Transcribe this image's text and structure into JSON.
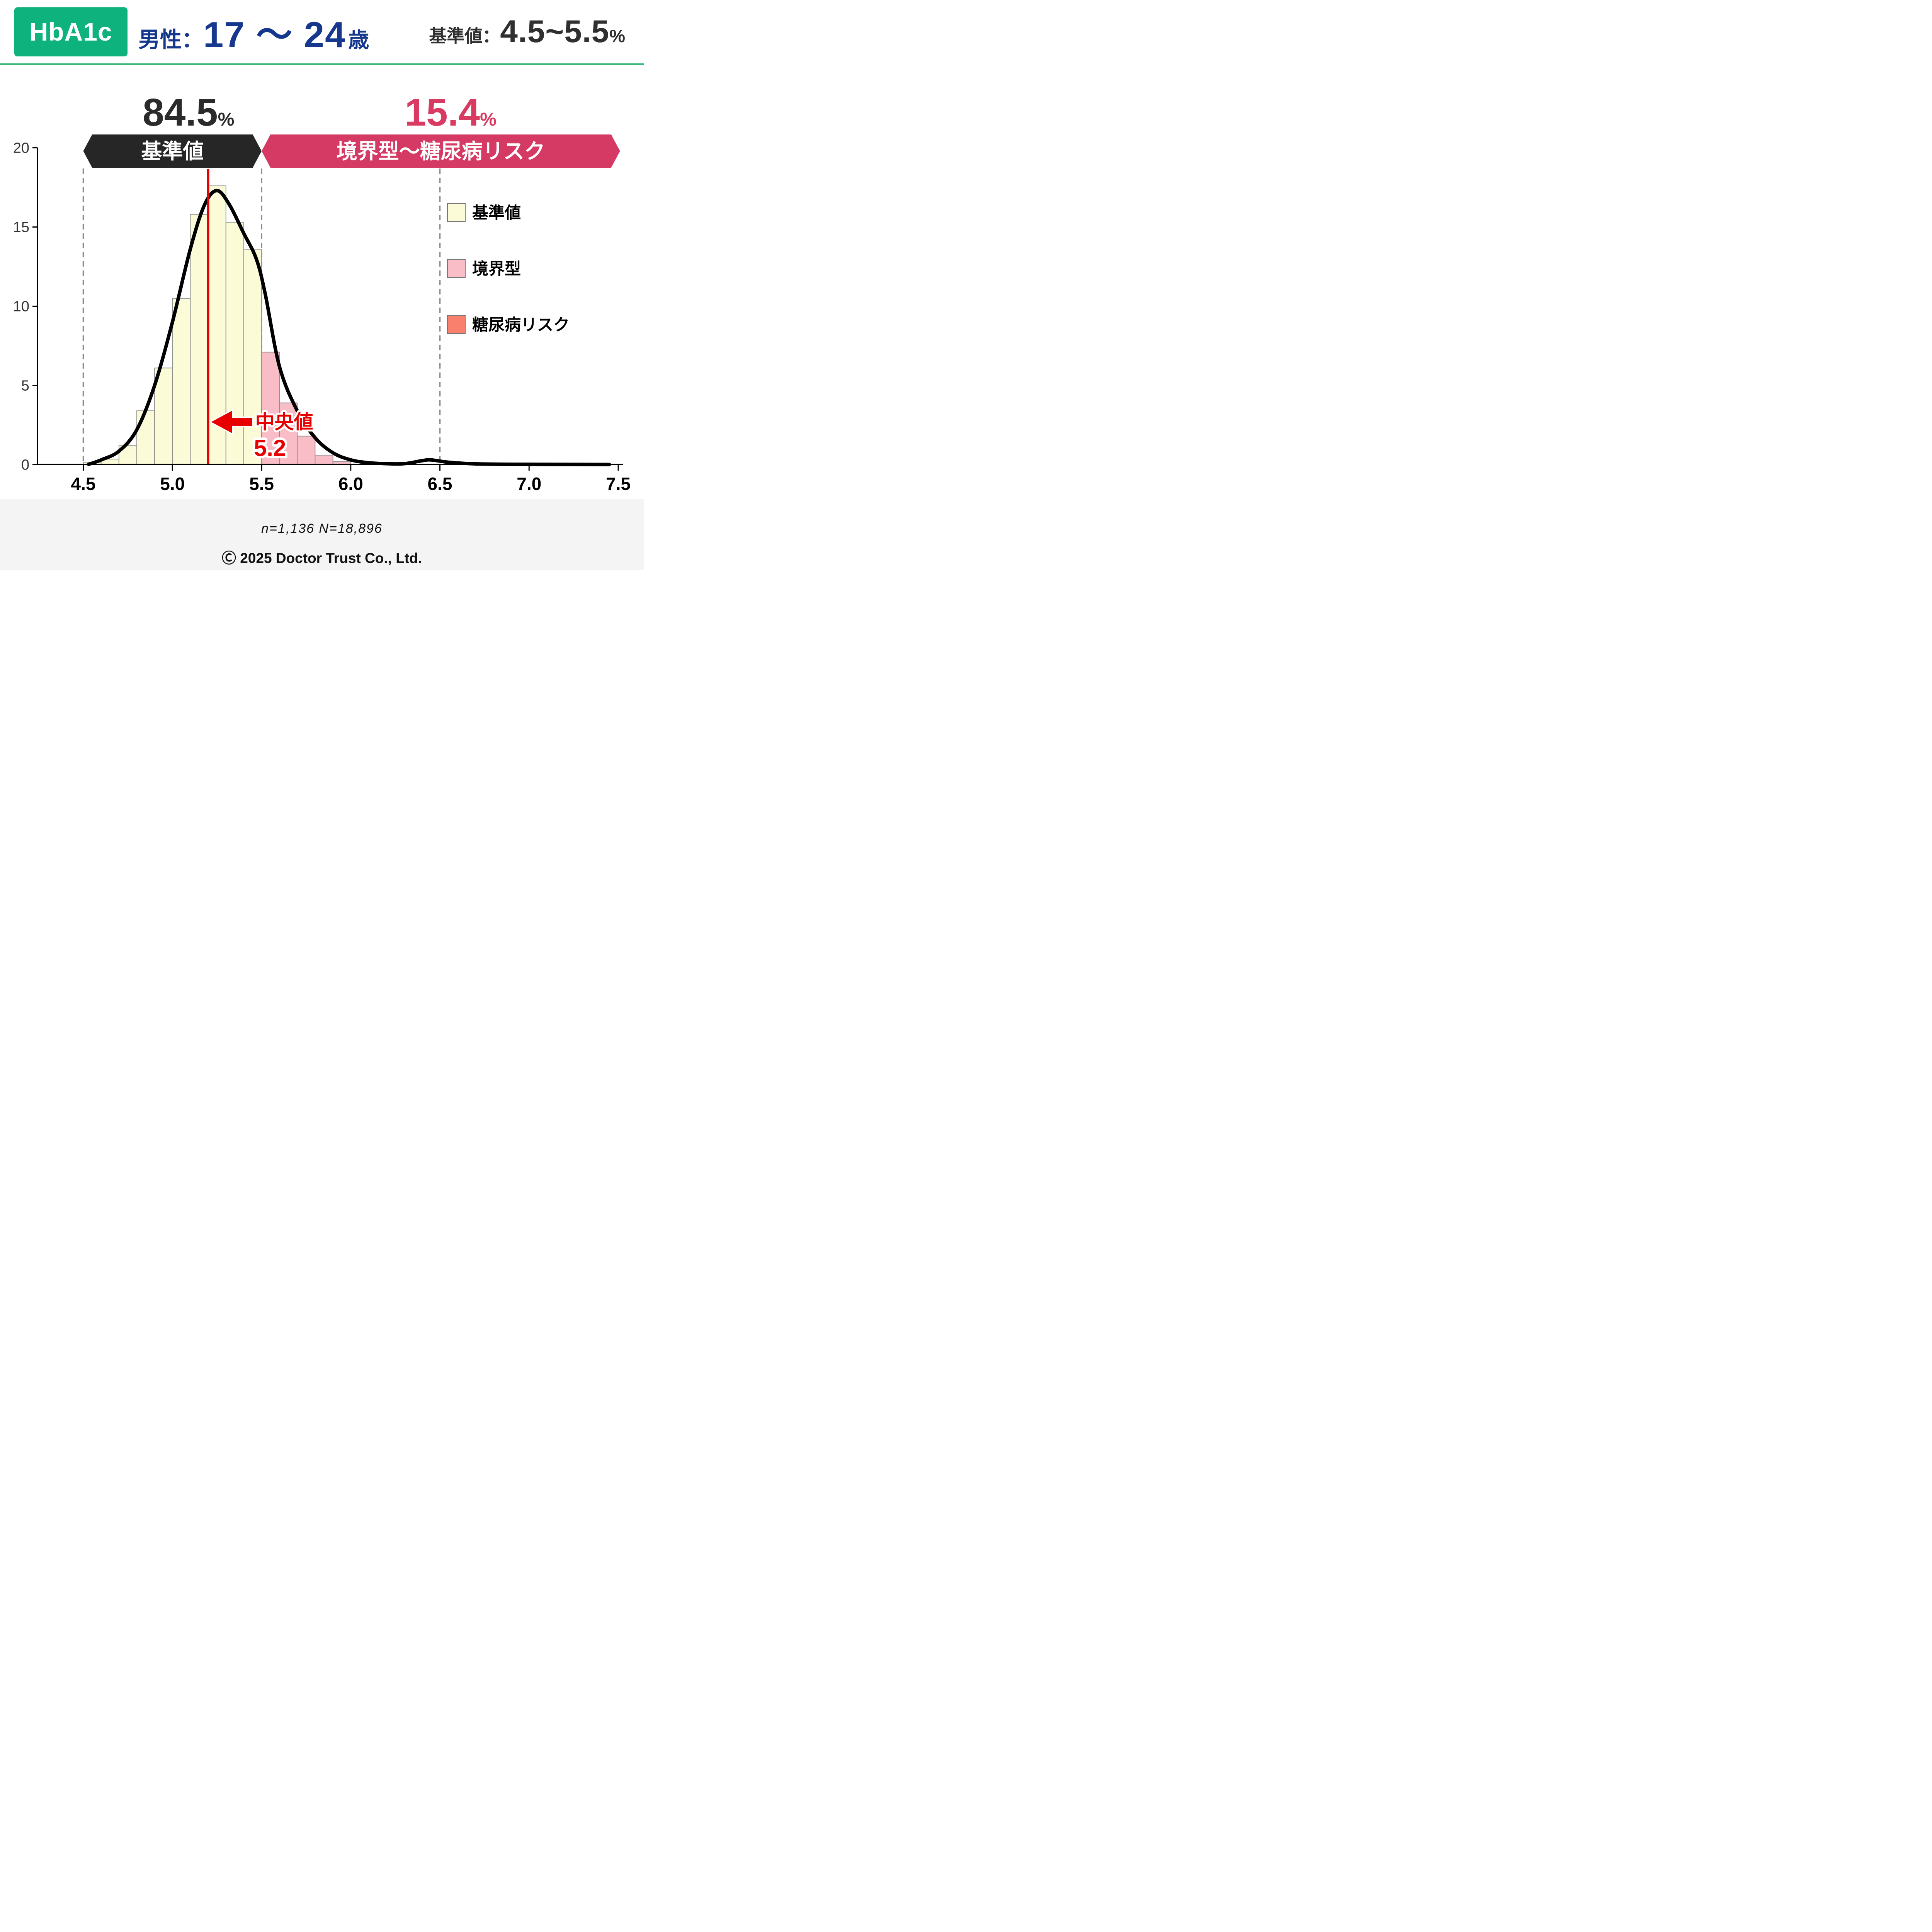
{
  "header": {
    "badge": "HbA1c",
    "badge_color": "#0db27c",
    "gender_label": "男性：",
    "age_range": "17 ～ 24",
    "age_unit": "歳",
    "title_color": "#16378e",
    "ref_label": "基準値：",
    "ref_value": "4.5~5.5",
    "ref_unit": "%",
    "underline_color": "#3cb878"
  },
  "annotations": {
    "median_label": "中央値",
    "median_value_label": "5.2"
  },
  "legend": [
    {
      "label": "基準値",
      "color": "#fcfbd8"
    },
    {
      "label": "境界型",
      "color": "#f9bdc7"
    },
    {
      "label": "糖尿病リスク",
      "color": "#f8806c"
    }
  ],
  "footer": {
    "sample_text": "n=1,136  N=18,896",
    "copyright": "Ⓒ 2025 Doctor Trust Co., Ltd."
  },
  "chart_data": {
    "type": "histogram",
    "title": "HbA1c 男性 17～24歳 分布",
    "xlabel": "",
    "ylabel": "",
    "xlim": [
      4.24,
      7.56
    ],
    "ylim": [
      0,
      20
    ],
    "x_ticks": [
      4.5,
      5.0,
      5.5,
      6.0,
      6.5,
      7.0,
      7.5
    ],
    "y_ticks": [
      0,
      5,
      10,
      15,
      20
    ],
    "grid": false,
    "legend_position": "right-center",
    "bin_width": 0.1,
    "bars": [
      {
        "x0": 4.5,
        "x1": 4.6,
        "height": 0.15,
        "category": "normal"
      },
      {
        "x0": 4.6,
        "x1": 4.7,
        "height": 0.35,
        "category": "normal"
      },
      {
        "x0": 4.7,
        "x1": 4.8,
        "height": 1.2,
        "category": "normal"
      },
      {
        "x0": 4.8,
        "x1": 4.9,
        "height": 3.4,
        "category": "normal"
      },
      {
        "x0": 4.9,
        "x1": 5.0,
        "height": 6.1,
        "category": "normal"
      },
      {
        "x0": 5.0,
        "x1": 5.1,
        "height": 10.5,
        "category": "normal"
      },
      {
        "x0": 5.1,
        "x1": 5.2,
        "height": 15.8,
        "category": "normal"
      },
      {
        "x0": 5.2,
        "x1": 5.3,
        "height": 17.6,
        "category": "normal"
      },
      {
        "x0": 5.3,
        "x1": 5.4,
        "height": 15.3,
        "category": "normal"
      },
      {
        "x0": 5.4,
        "x1": 5.5,
        "height": 13.6,
        "category": "normal"
      },
      {
        "x0": 5.5,
        "x1": 5.6,
        "height": 7.1,
        "category": "borderline"
      },
      {
        "x0": 5.6,
        "x1": 5.7,
        "height": 3.9,
        "category": "borderline"
      },
      {
        "x0": 5.7,
        "x1": 5.8,
        "height": 1.8,
        "category": "borderline"
      },
      {
        "x0": 5.8,
        "x1": 5.9,
        "height": 0.6,
        "category": "borderline"
      },
      {
        "x0": 5.9,
        "x1": 6.0,
        "height": 0.2,
        "category": "borderline"
      }
    ],
    "density_curve": [
      [
        4.53,
        0.02
      ],
      [
        4.6,
        0.3
      ],
      [
        4.7,
        0.85
      ],
      [
        4.8,
        2.2
      ],
      [
        4.9,
        5.0
      ],
      [
        5.0,
        9.0
      ],
      [
        5.1,
        13.6
      ],
      [
        5.18,
        16.4
      ],
      [
        5.25,
        17.3
      ],
      [
        5.32,
        16.4
      ],
      [
        5.4,
        14.6
      ],
      [
        5.47,
        13.0
      ],
      [
        5.52,
        10.8
      ],
      [
        5.6,
        6.2
      ],
      [
        5.7,
        3.4
      ],
      [
        5.8,
        1.7
      ],
      [
        5.9,
        0.75
      ],
      [
        6.0,
        0.3
      ],
      [
        6.1,
        0.12
      ],
      [
        6.2,
        0.06
      ],
      [
        6.3,
        0.06
      ],
      [
        6.4,
        0.25
      ],
      [
        6.45,
        0.3
      ],
      [
        6.55,
        0.15
      ],
      [
        6.7,
        0.05
      ],
      [
        7.0,
        0.02
      ],
      [
        7.45,
        0.01
      ]
    ],
    "median": 5.2,
    "dashed_lines": [
      4.5,
      5.5,
      6.5
    ],
    "regions": [
      {
        "key": "normal",
        "label": "基準値",
        "from": 4.5,
        "to": 5.5,
        "pct": "84.5",
        "pct_unit": "%",
        "pct_center": 5.09,
        "band_color": "#262626",
        "pct_color": "#2b2b2b"
      },
      {
        "key": "risk",
        "label": "境界型～糖尿病リスク",
        "from": 5.5,
        "to": 7.51,
        "pct": "15.4",
        "pct_unit": "%",
        "pct_center": 6.56,
        "band_color": "#d43a63",
        "pct_color": "#d83a62"
      }
    ],
    "colors": {
      "normal": "#fcfbd8",
      "borderline": "#f9bdc7",
      "diabetes_risk": "#f8806c",
      "bar_border": "#8f8f8f",
      "curve": "#000000",
      "median_line": "#e80000",
      "dashed": "#8c8c8c",
      "axis": "#000000",
      "tick_label": "#333333"
    }
  }
}
